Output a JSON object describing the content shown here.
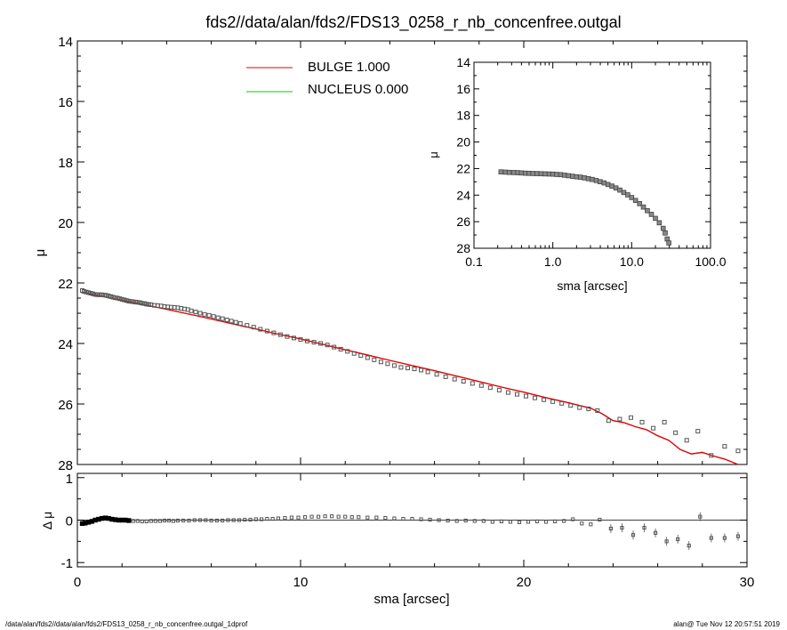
{
  "title": "fds2//data/alan/fds2/FDS13_0258_r_nb_concenfree.outgal",
  "footer": {
    "left": "/data/alan/fds2//data/alan/fds2/FDS13_0258_r_nb_concenfree.outgal_1dprof",
    "right": "alan@  Tue Nov 12 20:57:51 2019"
  },
  "colors": {
    "bulge": "#e00000",
    "nucleus": "#00cc00",
    "points": "#555555",
    "axes": "#000000"
  },
  "chart_data": [
    {
      "id": "main",
      "type": "scatter",
      "ylabel": "μ",
      "xlim": [
        0,
        30
      ],
      "ylim": [
        28,
        14
      ],
      "y_inverted": true,
      "yticks": [
        14,
        16,
        18,
        20,
        22,
        24,
        26,
        28
      ],
      "yticklabels": [
        "14",
        "16",
        "18",
        "20",
        "22",
        "24",
        "26",
        "28"
      ],
      "legend": {
        "placement": "top-center",
        "entries": [
          {
            "label": "BULGE  1.000",
            "color": "#e00000"
          },
          {
            "label": "NUCLEUS  0.000",
            "color": "#00cc00"
          }
        ]
      },
      "points": {
        "x": [
          0.22,
          0.3,
          0.4,
          0.5,
          0.6,
          0.7,
          0.8,
          0.9,
          1.0,
          1.1,
          1.2,
          1.3,
          1.4,
          1.5,
          1.6,
          1.7,
          1.8,
          1.9,
          2.0,
          2.1,
          2.2,
          2.3,
          2.4,
          2.5,
          2.6,
          2.7,
          2.8,
          2.9,
          3.0,
          3.1,
          3.2,
          3.3,
          3.45,
          3.6,
          3.75,
          3.9,
          4.05,
          4.2,
          4.35,
          4.5,
          4.65,
          4.8,
          4.95,
          5.1,
          5.3,
          5.5,
          5.7,
          5.9,
          6.1,
          6.3,
          6.5,
          6.7,
          6.9,
          7.1,
          7.3,
          7.6,
          7.9,
          8.2,
          8.5,
          8.8,
          9.1,
          9.4,
          9.7,
          10.0,
          10.3,
          10.6,
          10.9,
          11.2,
          11.5,
          11.8,
          12.1,
          12.4,
          12.7,
          13.0,
          13.3,
          13.6,
          13.9,
          14.2,
          14.5,
          14.8,
          15.1,
          15.4,
          15.7,
          16.1,
          16.5,
          16.9,
          17.3,
          17.7,
          18.1,
          18.5,
          18.9,
          19.3,
          19.7,
          20.1,
          20.5,
          20.9,
          21.3,
          21.7,
          22.1,
          22.5,
          22.9,
          23.3,
          23.8,
          24.3,
          24.8,
          25.3,
          25.8,
          26.3,
          26.8,
          27.3,
          27.8,
          28.4,
          29.0,
          29.6
        ],
        "y": [
          22.25,
          22.28,
          22.3,
          22.32,
          22.34,
          22.36,
          22.38,
          22.39,
          22.39,
          22.39,
          22.4,
          22.41,
          22.43,
          22.45,
          22.47,
          22.49,
          22.5,
          22.52,
          22.54,
          22.56,
          22.58,
          22.6,
          22.61,
          22.62,
          22.63,
          22.64,
          22.65,
          22.67,
          22.68,
          22.7,
          22.71,
          22.72,
          22.74,
          22.75,
          22.76,
          22.78,
          22.79,
          22.8,
          22.81,
          22.82,
          22.84,
          22.86,
          22.88,
          22.92,
          22.96,
          23.0,
          23.04,
          23.07,
          23.11,
          23.15,
          23.18,
          23.22,
          23.26,
          23.3,
          23.34,
          23.4,
          23.46,
          23.53,
          23.59,
          23.65,
          23.71,
          23.77,
          23.82,
          23.87,
          23.92,
          23.96,
          24.0,
          24.05,
          24.12,
          24.19,
          24.26,
          24.33,
          24.4,
          24.47,
          24.54,
          24.61,
          24.67,
          24.73,
          24.79,
          24.81,
          24.84,
          24.88,
          24.94,
          25.02,
          25.1,
          25.18,
          25.25,
          25.32,
          25.39,
          25.46,
          25.54,
          25.62,
          25.68,
          25.74,
          25.8,
          25.86,
          25.92,
          25.98,
          26.05,
          26.12,
          26.16,
          26.22,
          26.55,
          26.5,
          26.45,
          26.6,
          26.8,
          26.6,
          26.95,
          27.2,
          26.9,
          27.7,
          27.4,
          27.55
        ]
      },
      "model": {
        "x": [
          0.22,
          0.5,
          1.0,
          1.5,
          2.0,
          3.0,
          4.0,
          5.0,
          6.0,
          7.0,
          8.0,
          9.0,
          10.0,
          11.0,
          12.0,
          13.0,
          14.0,
          15.0,
          16.0,
          17.0,
          18.0,
          19.0,
          20.0,
          21.0,
          22.0,
          23.0,
          23.5,
          24.0,
          24.5,
          25.0,
          25.5,
          26.0,
          26.5,
          27.0,
          27.5,
          28.0,
          28.5,
          29.0,
          29.6
        ],
        "y": [
          22.3,
          22.35,
          22.43,
          22.5,
          22.57,
          22.72,
          22.87,
          23.03,
          23.19,
          23.36,
          23.52,
          23.69,
          23.85,
          24.03,
          24.21,
          24.38,
          24.56,
          24.73,
          24.9,
          25.08,
          25.26,
          25.44,
          25.61,
          25.79,
          25.96,
          26.14,
          26.32,
          26.55,
          26.62,
          26.75,
          26.85,
          27.05,
          27.2,
          27.5,
          27.65,
          27.6,
          27.72,
          27.82,
          28.0
        ]
      }
    },
    {
      "id": "residual",
      "type": "scatter",
      "xlabel": "sma [arcsec]",
      "ylabel": "Δ μ",
      "xlim": [
        0,
        30
      ],
      "ylim": [
        -1.1,
        1.1
      ],
      "xticks": [
        0,
        10,
        20,
        30
      ],
      "xticklabels": [
        "0",
        "10",
        "20",
        "30"
      ],
      "yticks": [
        1,
        0,
        -1
      ],
      "yticklabels": [
        "1",
        "0",
        "-1"
      ],
      "zero_line": true,
      "points": {
        "x": [
          0.22,
          0.35,
          0.5,
          0.65,
          0.8,
          0.95,
          1.1,
          1.25,
          1.4,
          1.55,
          1.7,
          1.85,
          2.0,
          2.15,
          2.3,
          2.5,
          2.7,
          2.9,
          3.1,
          3.3,
          3.5,
          3.7,
          3.9,
          4.1,
          4.3,
          4.5,
          4.75,
          5.0,
          5.25,
          5.5,
          5.75,
          6.0,
          6.25,
          6.5,
          6.75,
          7.0,
          7.25,
          7.5,
          7.75,
          8.0,
          8.25,
          8.5,
          8.75,
          9.0,
          9.3,
          9.6,
          9.9,
          10.2,
          10.5,
          10.8,
          11.1,
          11.4,
          11.7,
          12.0,
          12.3,
          12.6,
          13.0,
          13.4,
          13.8,
          14.2,
          14.6,
          15.0,
          15.4,
          15.8,
          16.2,
          16.6,
          17.0,
          17.4,
          17.8,
          18.2,
          18.6,
          19.0,
          19.4,
          19.8,
          20.2,
          20.6,
          21.0,
          21.4,
          21.8,
          22.2,
          22.6,
          23.0,
          23.4,
          23.9,
          24.4,
          24.9,
          25.4,
          25.9,
          26.4,
          26.9,
          27.4,
          27.9,
          28.4,
          29.0,
          29.6
        ],
        "y": [
          -0.08,
          -0.07,
          -0.05,
          -0.03,
          0.0,
          0.02,
          0.04,
          0.05,
          0.04,
          0.02,
          0.01,
          0.0,
          0.0,
          0.0,
          -0.01,
          -0.02,
          -0.02,
          -0.03,
          -0.03,
          -0.02,
          -0.02,
          -0.02,
          -0.01,
          -0.01,
          -0.02,
          -0.01,
          -0.01,
          -0.01,
          0.0,
          0.0,
          0.0,
          -0.01,
          -0.01,
          -0.01,
          0.0,
          0.0,
          0.0,
          0.01,
          0.01,
          0.02,
          0.02,
          0.03,
          0.03,
          0.04,
          0.05,
          0.06,
          0.06,
          0.07,
          0.08,
          0.08,
          0.09,
          0.09,
          0.08,
          0.08,
          0.07,
          0.07,
          0.06,
          0.06,
          0.05,
          0.04,
          0.03,
          0.03,
          0.02,
          0.01,
          0.0,
          -0.01,
          -0.02,
          -0.01,
          -0.02,
          -0.02,
          -0.04,
          -0.03,
          -0.04,
          -0.05,
          -0.04,
          -0.03,
          -0.04,
          -0.03,
          -0.02,
          0.02,
          -0.08,
          -0.1,
          0.01,
          -0.2,
          -0.18,
          -0.35,
          -0.18,
          -0.3,
          -0.5,
          -0.45,
          -0.6,
          0.08,
          -0.42,
          -0.42,
          -0.38
        ]
      }
    },
    {
      "id": "inset",
      "type": "scatter",
      "x_scale": "log",
      "xlabel": "sma [arcsec]",
      "ylabel": "μ",
      "xlim": [
        0.1,
        100
      ],
      "ylim": [
        28,
        14
      ],
      "y_inverted": true,
      "xticks": [
        0.1,
        1,
        10,
        100
      ],
      "xticklabels": [
        "0.1",
        "1.0",
        "10.0",
        "100.0"
      ],
      "yticks": [
        14,
        16,
        18,
        20,
        22,
        24,
        26,
        28
      ],
      "yticklabels": [
        "14",
        "16",
        "18",
        "20",
        "22",
        "24",
        "26",
        "28"
      ],
      "points": {
        "x": [
          0.22,
          0.25,
          0.28,
          0.32,
          0.36,
          0.4,
          0.45,
          0.5,
          0.56,
          0.63,
          0.71,
          0.8,
          0.9,
          1.0,
          1.12,
          1.26,
          1.41,
          1.58,
          1.78,
          2.0,
          2.24,
          2.51,
          2.82,
          3.16,
          3.55,
          3.98,
          4.47,
          5.01,
          5.62,
          6.31,
          7.08,
          7.94,
          8.91,
          10.0,
          11.2,
          12.6,
          14.1,
          15.8,
          17.8,
          20.0,
          22.4,
          25.1,
          26.6,
          28.2,
          29.6
        ],
        "y": [
          22.25,
          22.27,
          22.29,
          22.3,
          22.31,
          22.33,
          22.35,
          22.36,
          22.37,
          22.38,
          22.39,
          22.4,
          22.41,
          22.42,
          22.44,
          22.46,
          22.5,
          22.54,
          22.58,
          22.62,
          22.65,
          22.7,
          22.76,
          22.82,
          22.9,
          22.99,
          23.08,
          23.2,
          23.32,
          23.46,
          23.62,
          23.8,
          23.98,
          24.18,
          24.4,
          24.64,
          24.9,
          25.17,
          25.45,
          25.75,
          26.08,
          26.5,
          26.85,
          27.3,
          27.6
        ]
      }
    }
  ]
}
